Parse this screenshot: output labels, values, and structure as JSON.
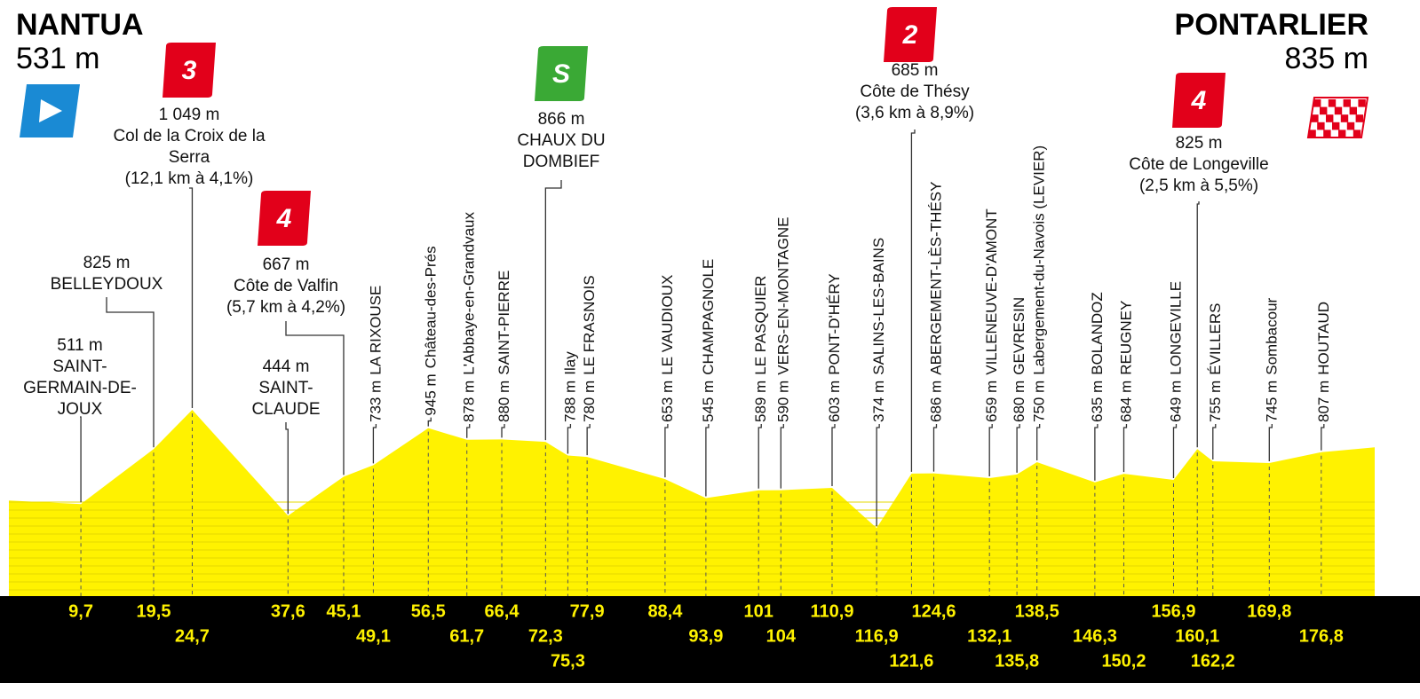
{
  "chart_data": {
    "type": "area",
    "color": "#fff200",
    "start": {
      "name": "NANTUA",
      "altitude": 531,
      "altitude_label": "531 m"
    },
    "finish": {
      "name": "PONTARLIER",
      "altitude": 835,
      "altitude_label": "835 m"
    },
    "xlim": [
      0,
      184
    ],
    "ylim": [
      0,
      1100
    ],
    "waypoints": [
      {
        "km": 9.7,
        "km_label": "9,7",
        "altitude": 511,
        "altitude_label": "511 m",
        "name": "SAINT-GERMAIN-DE-JOUX"
      },
      {
        "km": 19.5,
        "km_label": "19,5",
        "altitude": 825,
        "altitude_label": "825 m",
        "name": "BELLEYDOUX"
      },
      {
        "km": 24.7,
        "km_label": "24,7",
        "altitude": 1049,
        "altitude_label": "1 049 m",
        "name": "Col de la Croix de la Serra",
        "climb": "(12,1 km à 4,1%)",
        "category": "3",
        "badge_color": "#e2001a"
      },
      {
        "km": 37.6,
        "km_label": "37,6",
        "altitude": 444,
        "altitude_label": "444 m",
        "name": "SAINT-CLAUDE"
      },
      {
        "km": 45.1,
        "km_label": "45,1",
        "altitude": 667,
        "altitude_label": "667 m",
        "name": "Côte de Valfin",
        "climb": "(5,7 km à 4,2%)",
        "category": "4",
        "badge_color": "#e2001a"
      },
      {
        "km": 49.1,
        "km_label": "49,1",
        "altitude": 733,
        "altitude_label": "733 m",
        "name": "LA RIXOUSE"
      },
      {
        "km": 56.5,
        "km_label": "56,5",
        "altitude": 945,
        "altitude_label": "945 m",
        "name": "Château-des-Prés"
      },
      {
        "km": 61.7,
        "km_label": "61,7",
        "altitude": 878,
        "altitude_label": "878 m",
        "name": "L'Abbaye-en-Grandvaux"
      },
      {
        "km": 66.4,
        "km_label": "66,4",
        "altitude": 880,
        "altitude_label": "880 m",
        "name": "SAINT-PIERRE"
      },
      {
        "km": 72.3,
        "km_label": "72,3",
        "altitude": 866,
        "altitude_label": "866 m",
        "name": "CHAUX DU DOMBIEF",
        "category": "S",
        "badge_color": "#3aa935"
      },
      {
        "km": 75.3,
        "km_label": "75,3",
        "altitude": 788,
        "altitude_label": "788 m",
        "name": "Ilay"
      },
      {
        "km": 77.9,
        "km_label": "77,9",
        "altitude": 780,
        "altitude_label": "780 m",
        "name": "LE FRASNOIS"
      },
      {
        "km": 88.4,
        "km_label": "88,4",
        "altitude": 653,
        "altitude_label": "653 m",
        "name": "LE VAUDIOUX"
      },
      {
        "km": 93.9,
        "km_label": "93,9",
        "altitude": 545,
        "altitude_label": "545 m",
        "name": "CHAMPAGNOLE"
      },
      {
        "km": 101,
        "km_label": "101",
        "altitude": 589,
        "altitude_label": "589 m",
        "name": "LE PASQUIER"
      },
      {
        "km": 104,
        "km_label": "104",
        "altitude": 590,
        "altitude_label": "590 m",
        "name": "VERS-EN-MONTAGNE"
      },
      {
        "km": 110.9,
        "km_label": "110,9",
        "altitude": 603,
        "altitude_label": "603 m",
        "name": "PONT-D'HÉRY"
      },
      {
        "km": 116.9,
        "km_label": "116,9",
        "altitude": 374,
        "altitude_label": "374 m",
        "name": "SALINS-LES-BAINS"
      },
      {
        "km": 121.6,
        "km_label": "121,6",
        "altitude": 685,
        "altitude_label": "685 m",
        "name": "Côte de Thésy",
        "climb": "(3,6 km à 8,9%)",
        "category": "2",
        "badge_color": "#e2001a"
      },
      {
        "km": 124.6,
        "km_label": "124,6",
        "altitude": 686,
        "altitude_label": "686 m",
        "name": "ABERGEMENT-LÈS-THÉSY"
      },
      {
        "km": 132.1,
        "km_label": "132,1",
        "altitude": 659,
        "altitude_label": "659 m",
        "name": "VILLENEUVE-D'AMONT"
      },
      {
        "km": 135.8,
        "km_label": "135,8",
        "altitude": 680,
        "altitude_label": "680 m",
        "name": "GEVRESIN"
      },
      {
        "km": 138.5,
        "km_label": "138,5",
        "altitude": 750,
        "altitude_label": "750 m",
        "name": "Labergement-du-Navois (LEVIER)"
      },
      {
        "km": 146.3,
        "km_label": "146,3",
        "altitude": 635,
        "altitude_label": "635 m",
        "name": "BOLANDOZ"
      },
      {
        "km": 150.2,
        "km_label": "150,2",
        "altitude": 684,
        "altitude_label": "684 m",
        "name": "REUGNEY"
      },
      {
        "km": 156.9,
        "km_label": "156,9",
        "altitude": 649,
        "altitude_label": "649 m",
        "name": "LONGEVILLE"
      },
      {
        "km": 160.1,
        "km_label": "160,1",
        "altitude": 825,
        "altitude_label": "825 m",
        "name": "Côte de Longeville",
        "climb": "(2,5 km à 5,5%)",
        "category": "4",
        "badge_color": "#e2001a"
      },
      {
        "km": 162.2,
        "km_label": "162,2",
        "altitude": 755,
        "altitude_label": "755 m",
        "name": "ÉVILLERS"
      },
      {
        "km": 169.8,
        "km_label": "169,8",
        "altitude": 745,
        "altitude_label": "745 m",
        "name": "Sombacour"
      },
      {
        "km": 176.8,
        "km_label": "176,8",
        "altitude": 807,
        "altitude_label": "807 m",
        "name": "HOUTAUD"
      }
    ]
  }
}
